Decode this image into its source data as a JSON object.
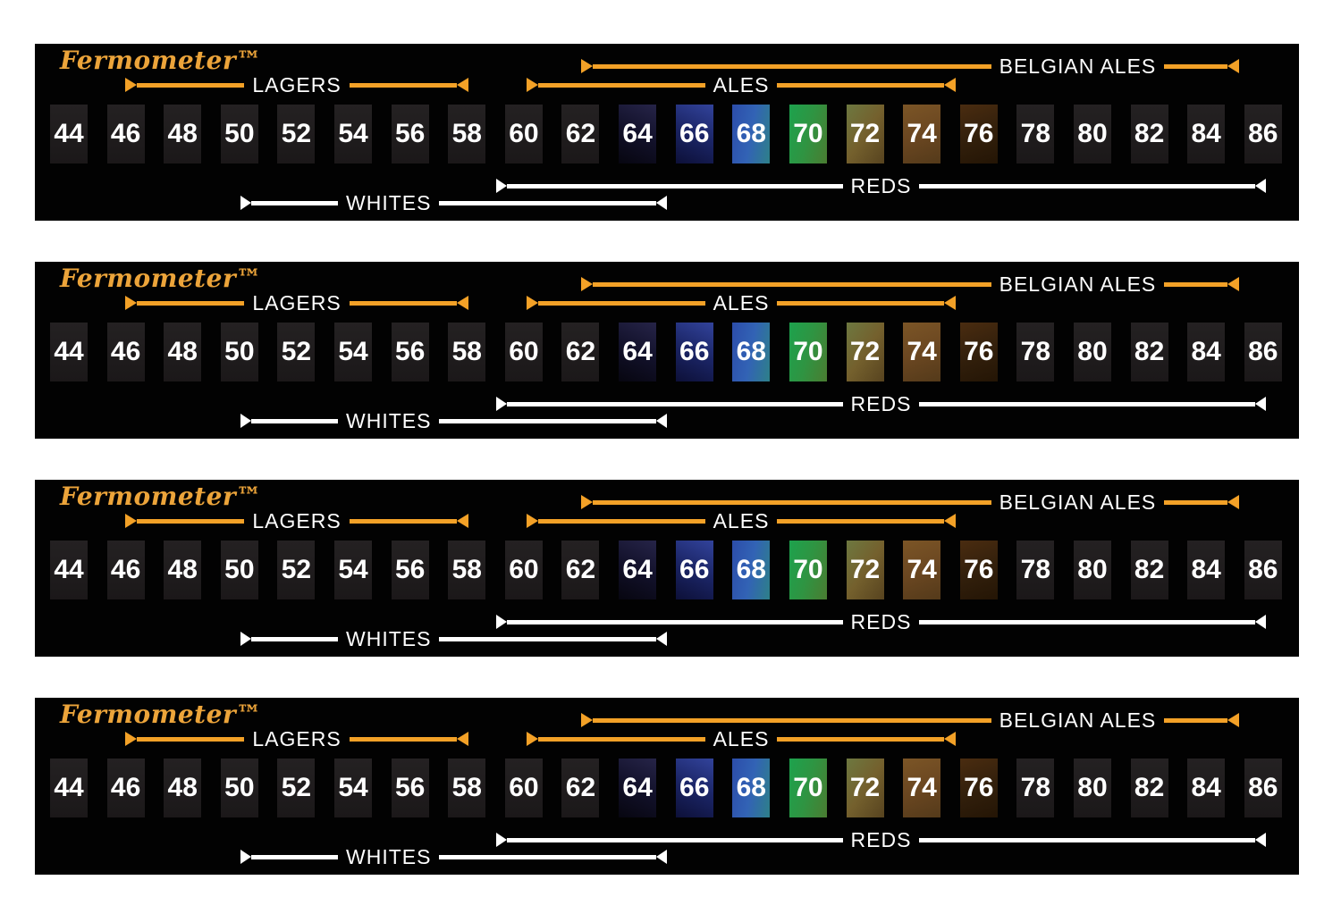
{
  "page": {
    "background": "#FFFFFF"
  },
  "strip_count": 4,
  "strip": {
    "brand": "Fermometer™",
    "colors": {
      "page_bg": "#FFFFFF",
      "panel_bg": "#020202",
      "accent_orange": "#F3A127",
      "logo_gold": "#ECA43A",
      "bar_white": "#FFFFFF",
      "number_white": "#FFFFFF",
      "cell_dark_top": "#242122",
      "cell_dark_bottom": "#1B1819"
    },
    "ranges": {
      "belgian_ales": {
        "label": "BELGIAN ALES"
      },
      "lagers": {
        "label": "LAGERS"
      },
      "ales": {
        "label": "ALES"
      },
      "reds": {
        "label": "REDS"
      },
      "whites": {
        "label": "WHITES"
      }
    },
    "scale_values": [
      "44",
      "46",
      "48",
      "50",
      "52",
      "54",
      "56",
      "58",
      "60",
      "62",
      "64",
      "66",
      "68",
      "70",
      "72",
      "74",
      "76",
      "78",
      "80",
      "82",
      "84",
      "86"
    ],
    "active_cells": {
      "64": {
        "angle": 205,
        "stops": [
          "#262448",
          "#12112A",
          "#070610"
        ]
      },
      "66": {
        "angle": 205,
        "stops": [
          "#32439B",
          "#1B2566",
          "#0D1038"
        ]
      },
      "68": {
        "angle": 100,
        "stops": [
          "#2C4DAA",
          "#3263B5",
          "#2E8089"
        ]
      },
      "70": {
        "angle": 105,
        "stops": [
          "#1DA24D",
          "#2F9442",
          "#4A7C31"
        ]
      },
      "72": {
        "angle": 125,
        "stops": [
          "#6D7840",
          "#74602D",
          "#57431F"
        ]
      },
      "74": {
        "angle": 160,
        "stops": [
          "#7B5526",
          "#6B4721",
          "#543A1A"
        ]
      },
      "76": {
        "angle": 160,
        "stops": [
          "#4A2C10",
          "#33200C",
          "#241505"
        ]
      }
    }
  }
}
